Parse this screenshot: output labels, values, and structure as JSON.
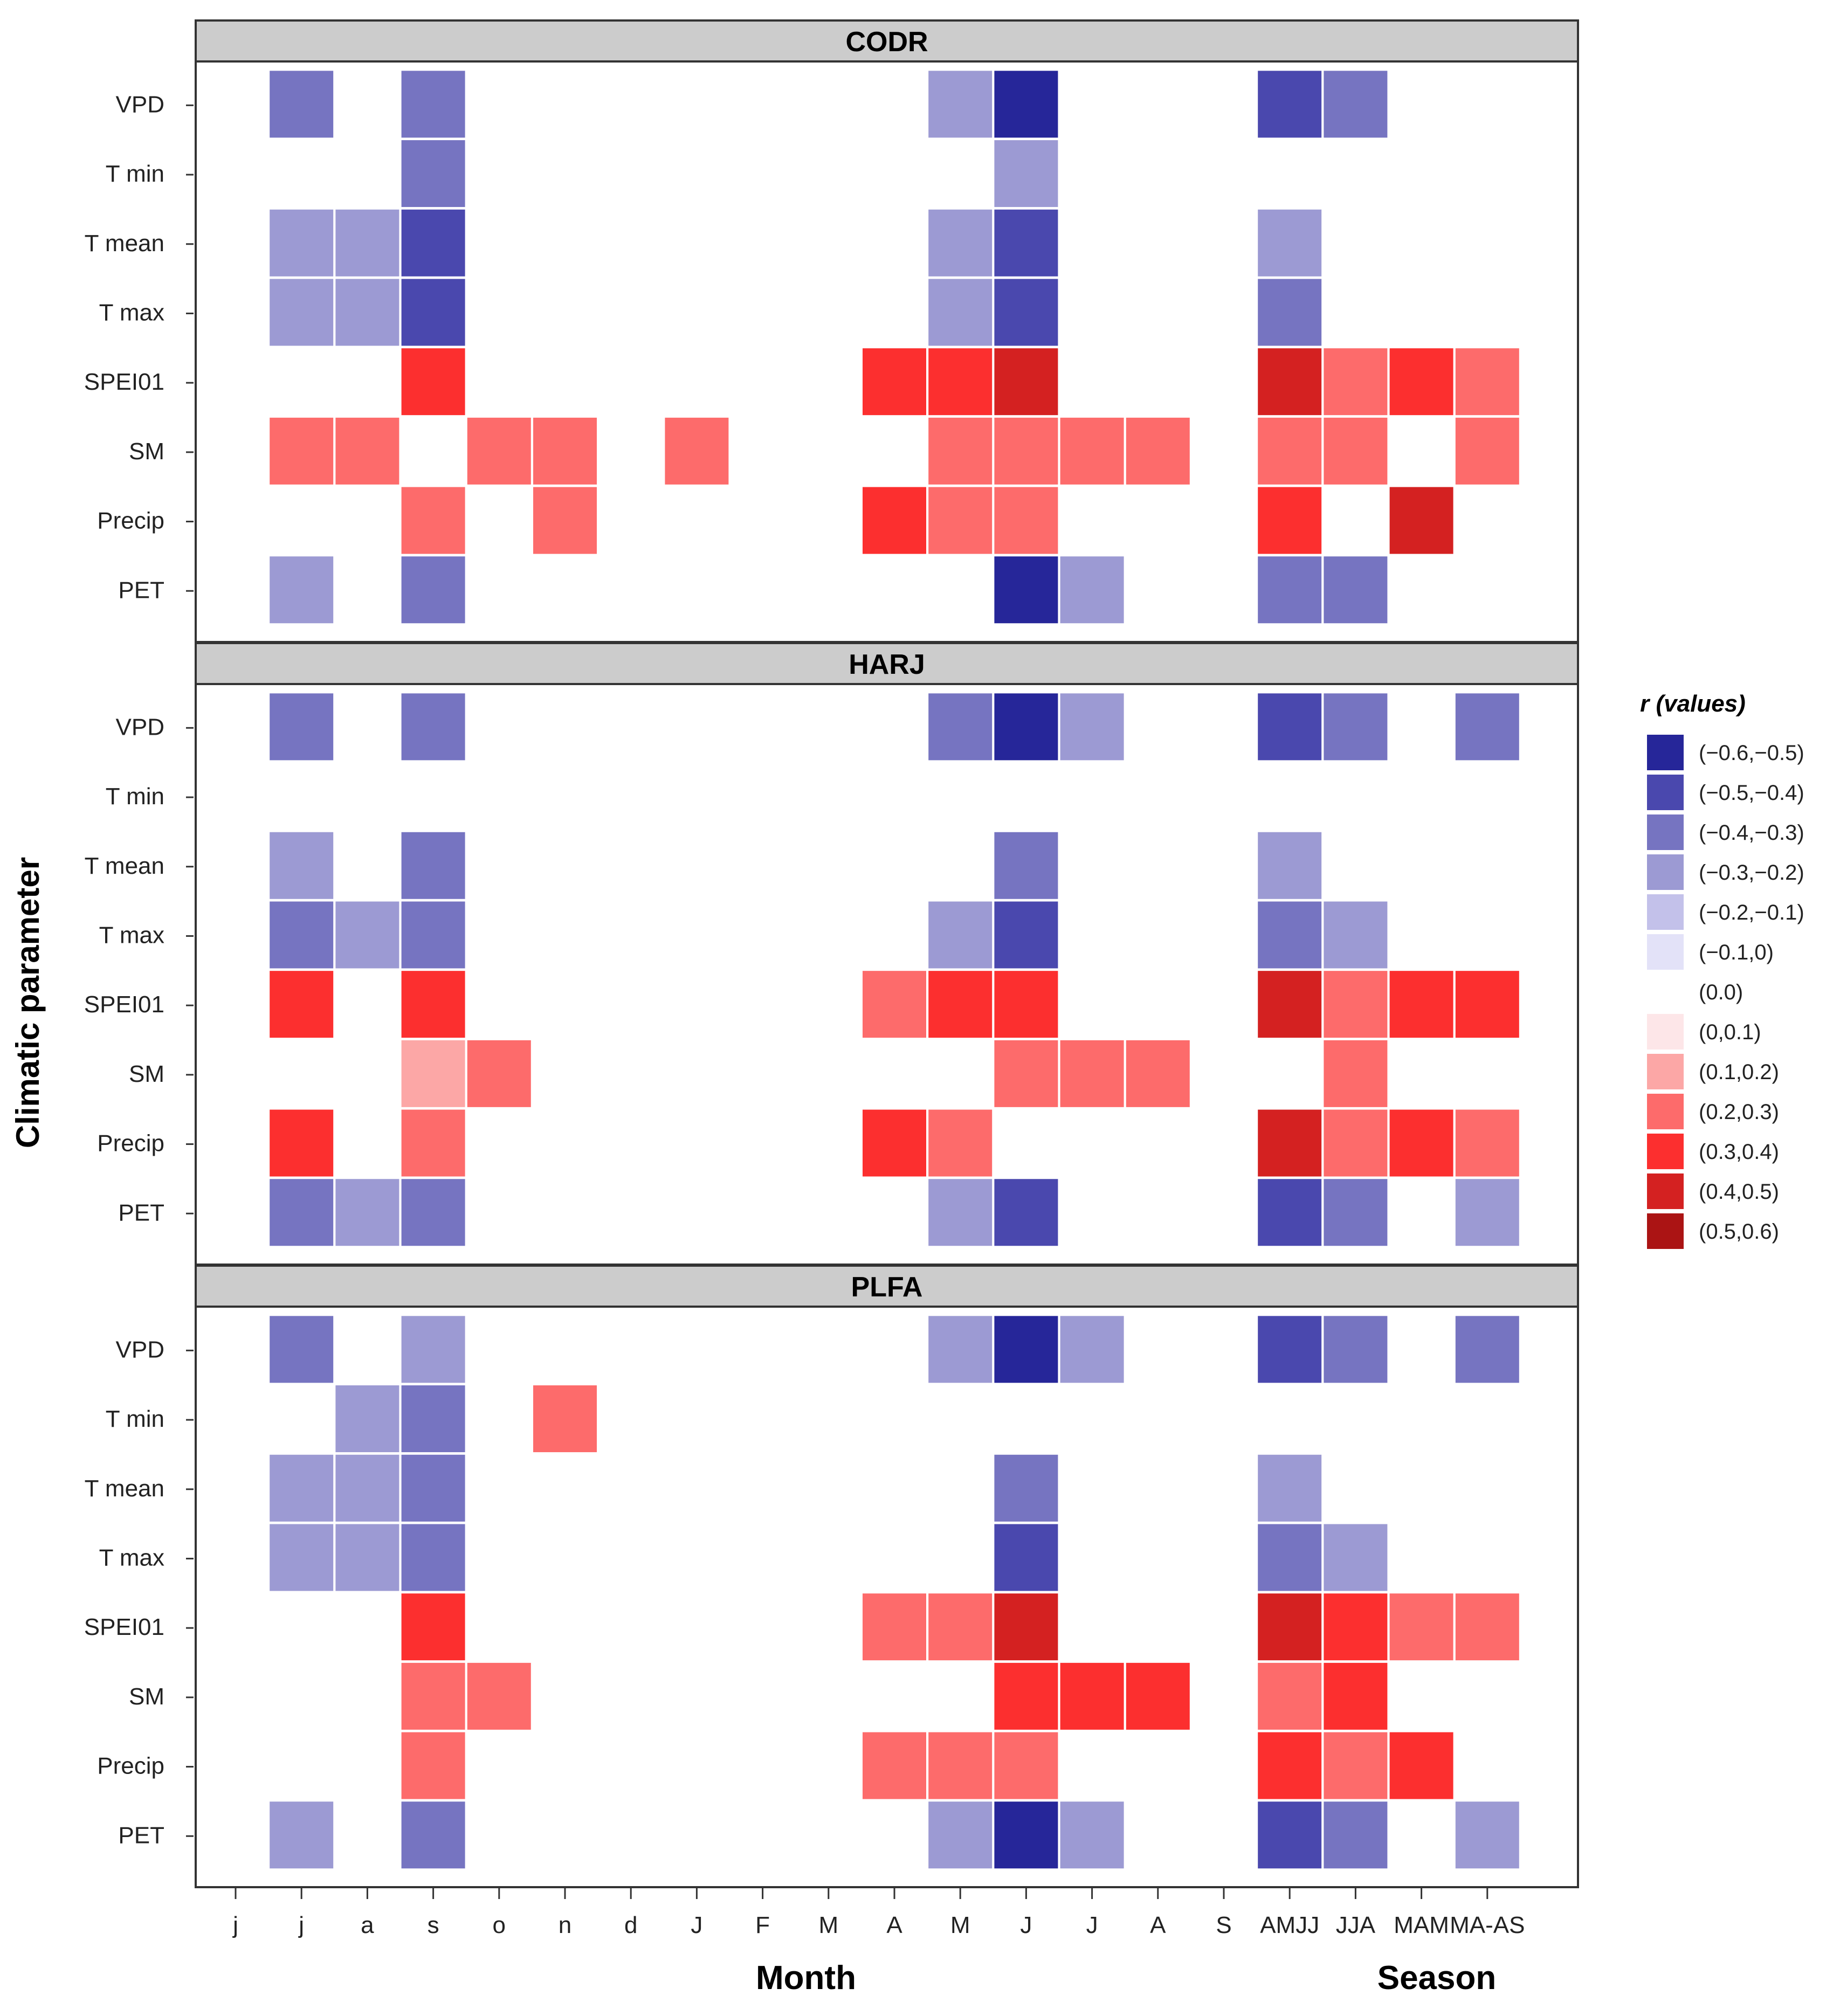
{
  "chart_data": {
    "type": "heatmap",
    "ylabel": "Climatic parameter",
    "xlabel_month": "Month",
    "xlabel_season": "Season",
    "x_categories": [
      "j",
      "j",
      "a",
      "s",
      "o",
      "n",
      "d",
      "J",
      "F",
      "M",
      "A",
      "M",
      "J",
      "J",
      "A",
      "S",
      "AMJJ",
      "JJA",
      "MAM",
      "MA-AS"
    ],
    "y_categories": [
      "VPD",
      "T min",
      "T mean",
      "T max",
      "SPEI01",
      "SM",
      "Precip",
      "PET"
    ],
    "legend": {
      "title": "r (values)",
      "placement": "right",
      "entries": [
        {
          "label": "(−0.6,−0.5)",
          "color": "#262699"
        },
        {
          "label": "(−0.5,−0.4)",
          "color": "#4a48ae"
        },
        {
          "label": "(−0.4,−0.3)",
          "color": "#7674c1"
        },
        {
          "label": "(−0.3,−0.2)",
          "color": "#9c9ad3"
        },
        {
          "label": "(−0.2,−0.1)",
          "color": "#c3c1ea"
        },
        {
          "label": "(−0.1,0)",
          "color": "#e3e2f8"
        },
        {
          "label": "(0.0)",
          "color": "#ffffff"
        },
        {
          "label": "(0,0.1)",
          "color": "#fde6e8"
        },
        {
          "label": "(0.1,0.2)",
          "color": "#fca7a6"
        },
        {
          "label": "(0.2,0.3)",
          "color": "#fd6b6b"
        },
        {
          "label": "(0.3,0.4)",
          "color": "#fc2f2f"
        },
        {
          "label": "(0.4,0.5)",
          "color": "#d42121"
        },
        {
          "label": "(0.5,0.6)",
          "color": "#ab1414"
        }
      ]
    },
    "panels": [
      {
        "title": "CODR",
        "rows": [
          [
            null,
            2,
            null,
            2,
            null,
            null,
            null,
            null,
            null,
            null,
            null,
            3,
            0,
            null,
            null,
            null,
            1,
            2,
            null,
            null
          ],
          [
            null,
            null,
            null,
            2,
            null,
            null,
            null,
            null,
            null,
            null,
            null,
            null,
            3,
            null,
            null,
            null,
            null,
            null,
            null,
            null
          ],
          [
            null,
            3,
            3,
            1,
            null,
            null,
            null,
            null,
            null,
            null,
            null,
            3,
            1,
            null,
            null,
            null,
            3,
            null,
            null,
            null
          ],
          [
            null,
            3,
            3,
            1,
            null,
            null,
            null,
            null,
            null,
            null,
            null,
            3,
            1,
            null,
            null,
            null,
            2,
            null,
            null,
            null
          ],
          [
            null,
            null,
            null,
            10,
            null,
            null,
            null,
            null,
            null,
            null,
            10,
            10,
            11,
            null,
            null,
            null,
            11,
            9,
            10,
            9
          ],
          [
            null,
            9,
            9,
            null,
            9,
            9,
            null,
            9,
            null,
            null,
            null,
            9,
            9,
            9,
            9,
            null,
            9,
            9,
            null,
            9
          ],
          [
            null,
            null,
            null,
            9,
            null,
            9,
            null,
            null,
            null,
            null,
            10,
            9,
            9,
            null,
            null,
            null,
            10,
            null,
            11,
            null
          ],
          [
            null,
            3,
            null,
            2,
            null,
            null,
            null,
            null,
            null,
            null,
            null,
            null,
            0,
            3,
            null,
            null,
            2,
            2,
            null,
            null
          ]
        ]
      },
      {
        "title": "HARJ",
        "rows": [
          [
            null,
            2,
            null,
            2,
            null,
            null,
            null,
            null,
            null,
            null,
            null,
            2,
            0,
            3,
            null,
            null,
            1,
            2,
            null,
            2
          ],
          [
            null,
            null,
            null,
            null,
            null,
            null,
            null,
            null,
            null,
            null,
            null,
            null,
            null,
            null,
            null,
            null,
            null,
            null,
            null,
            null
          ],
          [
            null,
            3,
            null,
            2,
            null,
            null,
            null,
            null,
            null,
            null,
            null,
            null,
            2,
            null,
            null,
            null,
            3,
            null,
            null,
            null
          ],
          [
            null,
            2,
            3,
            2,
            null,
            null,
            null,
            null,
            null,
            null,
            null,
            3,
            1,
            null,
            null,
            null,
            2,
            3,
            null,
            null
          ],
          [
            null,
            10,
            null,
            10,
            null,
            null,
            null,
            null,
            null,
            null,
            9,
            10,
            10,
            null,
            null,
            null,
            11,
            9,
            10,
            10
          ],
          [
            null,
            null,
            null,
            8,
            9,
            null,
            null,
            null,
            null,
            null,
            null,
            null,
            9,
            9,
            9,
            null,
            null,
            9,
            null,
            null
          ],
          [
            null,
            10,
            null,
            9,
            null,
            null,
            null,
            null,
            null,
            null,
            10,
            9,
            null,
            null,
            null,
            null,
            11,
            9,
            10,
            9
          ],
          [
            null,
            2,
            3,
            2,
            null,
            null,
            null,
            null,
            null,
            null,
            null,
            3,
            1,
            null,
            null,
            null,
            1,
            2,
            null,
            3
          ]
        ]
      },
      {
        "title": "PLFA",
        "rows": [
          [
            null,
            2,
            null,
            3,
            null,
            null,
            null,
            null,
            null,
            null,
            null,
            3,
            0,
            3,
            null,
            null,
            1,
            2,
            null,
            2
          ],
          [
            null,
            null,
            3,
            2,
            null,
            9,
            null,
            null,
            null,
            null,
            null,
            null,
            null,
            null,
            null,
            null,
            null,
            null,
            null,
            null
          ],
          [
            null,
            3,
            3,
            2,
            null,
            null,
            null,
            null,
            null,
            null,
            null,
            null,
            2,
            null,
            null,
            null,
            3,
            null,
            null,
            null
          ],
          [
            null,
            3,
            3,
            2,
            null,
            null,
            null,
            null,
            null,
            null,
            null,
            null,
            1,
            null,
            null,
            null,
            2,
            3,
            null,
            null
          ],
          [
            null,
            null,
            null,
            10,
            null,
            null,
            null,
            null,
            null,
            null,
            9,
            9,
            11,
            null,
            null,
            null,
            11,
            10,
            9,
            9
          ],
          [
            null,
            null,
            null,
            9,
            9,
            null,
            null,
            null,
            null,
            null,
            null,
            null,
            10,
            10,
            10,
            null,
            9,
            10,
            null,
            null
          ],
          [
            null,
            null,
            null,
            9,
            null,
            null,
            null,
            null,
            null,
            null,
            9,
            9,
            9,
            null,
            null,
            null,
            10,
            9,
            10,
            null
          ],
          [
            null,
            3,
            null,
            2,
            null,
            null,
            null,
            null,
            null,
            null,
            null,
            3,
            0,
            3,
            null,
            null,
            1,
            2,
            null,
            3
          ]
        ]
      }
    ]
  }
}
